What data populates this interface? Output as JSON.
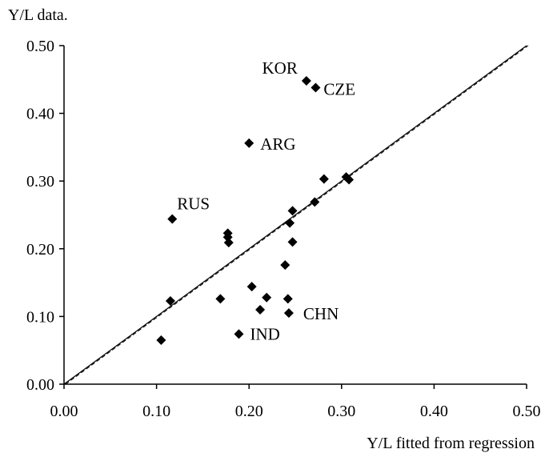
{
  "chart_data": {
    "type": "scatter",
    "title": "",
    "xlabel": "Y/L fitted from regression",
    "ylabel": "Y/L data.",
    "xlim": [
      0,
      0.5
    ],
    "ylim": [
      0,
      0.5
    ],
    "xticks": [
      "0.00",
      "0.10",
      "0.20",
      "0.30",
      "0.40",
      "0.50"
    ],
    "yticks": [
      "0.00",
      "0.10",
      "0.20",
      "0.30",
      "0.40",
      "0.50"
    ],
    "grid": false,
    "legend": "none",
    "marker": "diamond",
    "marker_color": "#000000",
    "reference_line": {
      "from": [
        0,
        0
      ],
      "to": [
        0.5,
        0.5
      ]
    },
    "points": [
      {
        "x": 0.262,
        "y": 0.448,
        "label": "KOR"
      },
      {
        "x": 0.272,
        "y": 0.438,
        "label": "CZE"
      },
      {
        "x": 0.2,
        "y": 0.356,
        "label": "ARG"
      },
      {
        "x": 0.117,
        "y": 0.244,
        "label": "RUS"
      },
      {
        "x": 0.243,
        "y": 0.105,
        "label": "CHN"
      },
      {
        "x": 0.189,
        "y": 0.074,
        "label": "IND"
      },
      {
        "x": 0.281,
        "y": 0.303,
        "label": ""
      },
      {
        "x": 0.305,
        "y": 0.306,
        "label": ""
      },
      {
        "x": 0.308,
        "y": 0.302,
        "label": ""
      },
      {
        "x": 0.271,
        "y": 0.269,
        "label": ""
      },
      {
        "x": 0.247,
        "y": 0.256,
        "label": ""
      },
      {
        "x": 0.244,
        "y": 0.238,
        "label": ""
      },
      {
        "x": 0.247,
        "y": 0.21,
        "label": ""
      },
      {
        "x": 0.177,
        "y": 0.223,
        "label": ""
      },
      {
        "x": 0.177,
        "y": 0.217,
        "label": ""
      },
      {
        "x": 0.178,
        "y": 0.209,
        "label": ""
      },
      {
        "x": 0.239,
        "y": 0.176,
        "label": ""
      },
      {
        "x": 0.203,
        "y": 0.144,
        "label": ""
      },
      {
        "x": 0.219,
        "y": 0.128,
        "label": ""
      },
      {
        "x": 0.242,
        "y": 0.126,
        "label": ""
      },
      {
        "x": 0.169,
        "y": 0.126,
        "label": ""
      },
      {
        "x": 0.115,
        "y": 0.123,
        "label": ""
      },
      {
        "x": 0.212,
        "y": 0.11,
        "label": ""
      },
      {
        "x": 0.105,
        "y": 0.065,
        "label": ""
      }
    ]
  }
}
